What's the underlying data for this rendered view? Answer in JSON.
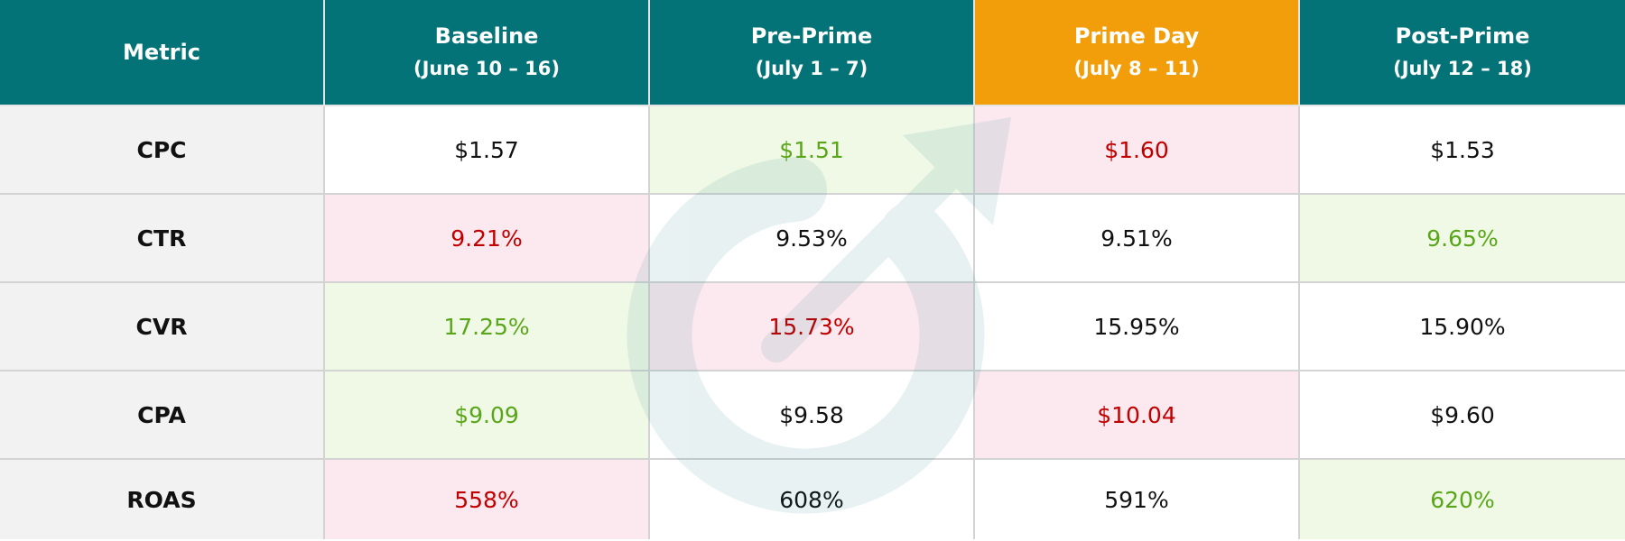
{
  "table": {
    "header": [
      {
        "title": "Metric"
      },
      {
        "title": "Baseline",
        "subtitle": "(June 10 – 16)"
      },
      {
        "title": "Pre-Prime",
        "subtitle": "(July 1 – 7)"
      },
      {
        "title": "Prime Day",
        "subtitle": "(July 8 – 11)"
      },
      {
        "title": "Post-Prime",
        "subtitle": "(July 12 – 18)"
      }
    ],
    "rows": [
      [
        "CPC",
        "$1.57",
        "$1.51",
        "$1.60",
        "$1.53"
      ],
      [
        "CTR",
        "9.21%",
        "9.53%",
        "9.51%",
        "9.65%"
      ],
      [
        "CVR",
        "17.25%",
        "15.73%",
        "15.95%",
        "15.90%"
      ],
      [
        "CPA",
        "$9.09",
        "$9.58",
        "$10.04",
        "$9.60"
      ],
      [
        "ROAS",
        "558%",
        "608%",
        "591%",
        "620%"
      ]
    ]
  }
}
